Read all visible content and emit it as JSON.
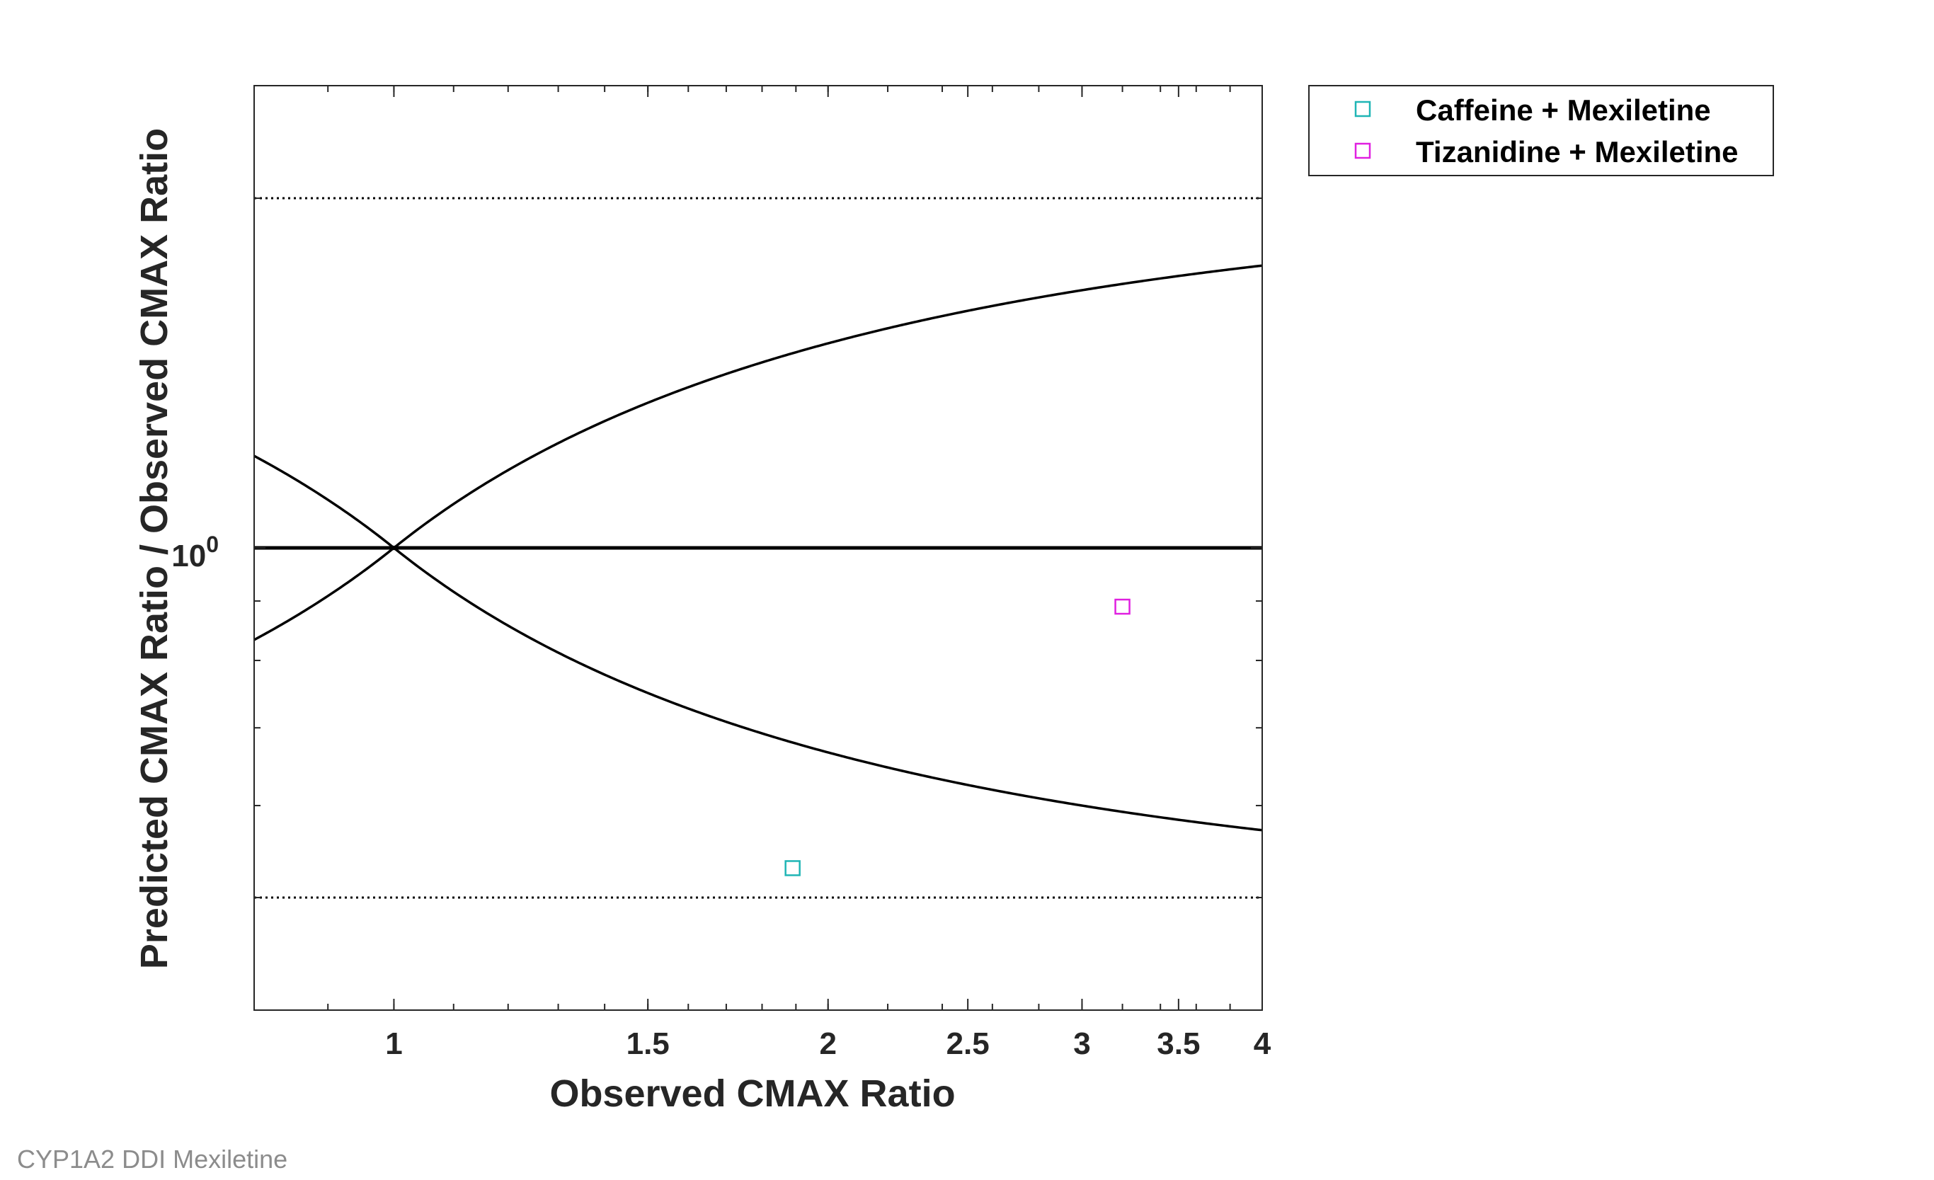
{
  "chart_data": {
    "type": "scatter",
    "xlabel": "Observed CMAX Ratio",
    "ylabel": "Predicted CMAX Ratio / Observed CMAX Ratio",
    "x_scale": "log",
    "y_scale": "log",
    "xlim": [
      0.8,
      4
    ],
    "ylim": [
      0.4,
      2.5
    ],
    "x_ticks": [
      {
        "value": 1,
        "label": "1"
      },
      {
        "value": 1.5,
        "label": "1.5"
      },
      {
        "value": 2,
        "label": "2"
      },
      {
        "value": 2.5,
        "label": "2.5"
      },
      {
        "value": 3,
        "label": "3"
      },
      {
        "value": 3.5,
        "label": "3.5"
      },
      {
        "value": 4,
        "label": "4"
      }
    ],
    "y_ticks": [
      {
        "value": 1,
        "label_base": "10",
        "label_exp": "0"
      }
    ],
    "reference_lines": {
      "identity": 1,
      "fold_bounds": [
        0.5,
        2
      ],
      "guest_limit_delta": 1
    },
    "series": [
      {
        "name": "Caffeine + Mexiletine",
        "color": "#1fb5b5",
        "marker": "square",
        "points": [
          {
            "x": 1.89,
            "y": 0.53
          }
        ]
      },
      {
        "name": "Tizanidine + Mexiletine",
        "color": "#e020e0",
        "marker": "square",
        "points": [
          {
            "x": 3.2,
            "y": 0.89
          }
        ]
      }
    ],
    "legend_position": "outside-right-top",
    "grid": false
  },
  "footer": {
    "caption": "CYP1A2 DDI Mexiletine"
  }
}
